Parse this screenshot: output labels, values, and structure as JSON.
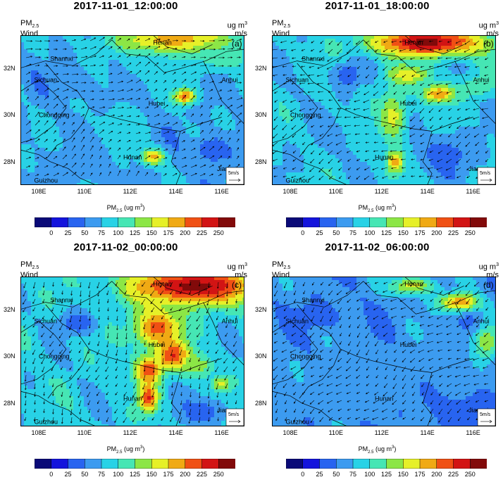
{
  "panels": [
    {
      "time_title": "2017-11-01_12:00:00",
      "tag": "(a)"
    },
    {
      "time_title": "2017-11-01_18:00:00",
      "tag": "(b)"
    },
    {
      "time_title": "2017-11-02_00:00:00",
      "tag": "(c)"
    },
    {
      "time_title": "2017-11-02_06:00:00",
      "tag": "(d)"
    }
  ],
  "labels": {
    "pm_label_main": "PM",
    "pm_label_sub": "2.5",
    "wind_label": "Wind",
    "unit_top": "ug m",
    "unit_top_sup": "3",
    "unit_wind": "m/s",
    "ref_vector": "5m/s",
    "cbar_title_main": "PM",
    "cbar_title_sub": "2.5",
    "cbar_title_units": " (ug m",
    "cbar_title_sup": "3",
    "cbar_title_close": ")"
  },
  "x_ticks": [
    "108E",
    "110E",
    "112E",
    "114E",
    "116E"
  ],
  "y_ticks": [
    "32N",
    "30N",
    "28N"
  ],
  "provinces": [
    "Shannxi",
    "Henan",
    "Sichuan",
    "Anhui",
    "Hubei",
    "Chongqing",
    "Hunan",
    "Jiangxi",
    "Guizhou"
  ],
  "colorbar": {
    "ticks": [
      "0",
      "25",
      "50",
      "75",
      "100",
      "125",
      "150",
      "175",
      "200",
      "225",
      "250"
    ],
    "colors": [
      "#0a0a78",
      "#1414dc",
      "#2864f0",
      "#3c9bf0",
      "#28d2e6",
      "#46e6b4",
      "#8ce646",
      "#e6f028",
      "#f0aa14",
      "#f05014",
      "#d21414",
      "#820a0a"
    ]
  },
  "domain": {
    "lon_min": 107.2,
    "lon_max": 117.0,
    "lat_min": 27.0,
    "lat_max": 33.4
  },
  "wind_patterns": [
    "southeasterly",
    "northeasterly",
    "northerly",
    "northeasterly"
  ]
}
